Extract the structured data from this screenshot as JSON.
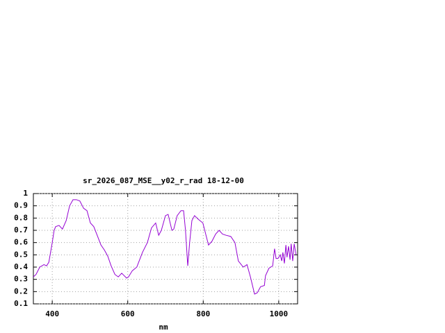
{
  "chart_data": {
    "type": "line",
    "title": "sr_2026_087_MSE__y02_r_rad 18-12-00",
    "x_label": "nm",
    "x": [
      350,
      357,
      367,
      378,
      385,
      391,
      400,
      405,
      409,
      418,
      427,
      437,
      446,
      455,
      464,
      473,
      483,
      492,
      501,
      510,
      519,
      529,
      538,
      547,
      556,
      566,
      575,
      584,
      597,
      602,
      612,
      624,
      639,
      652,
      663,
      674,
      682,
      689,
      700,
      707,
      717,
      722,
      731,
      741,
      748,
      753,
      759,
      764,
      770,
      777,
      787,
      799,
      814,
      823,
      833,
      842,
      851,
      860,
      873,
      884,
      893,
      906,
      916,
      925,
      936,
      943,
      952,
      962,
      965,
      974,
      984,
      989,
      993,
      998,
      1004,
      1008,
      1011,
      1015,
      1019,
      1022,
      1026,
      1030,
      1033,
      1037,
      1041,
      1046
    ],
    "series": [
      {
        "color": "#9400d3",
        "values": [
          0.32,
          0.34,
          0.4,
          0.42,
          0.41,
          0.44,
          0.6,
          0.7,
          0.73,
          0.74,
          0.71,
          0.78,
          0.9,
          0.95,
          0.95,
          0.94,
          0.88,
          0.86,
          0.76,
          0.73,
          0.66,
          0.58,
          0.54,
          0.49,
          0.41,
          0.34,
          0.32,
          0.35,
          0.31,
          0.32,
          0.37,
          0.4,
          0.52,
          0.6,
          0.72,
          0.76,
          0.66,
          0.7,
          0.82,
          0.83,
          0.7,
          0.71,
          0.82,
          0.86,
          0.86,
          0.7,
          0.41,
          0.6,
          0.78,
          0.82,
          0.79,
          0.76,
          0.58,
          0.61,
          0.67,
          0.7,
          0.67,
          0.66,
          0.65,
          0.6,
          0.45,
          0.4,
          0.42,
          0.32,
          0.18,
          0.19,
          0.24,
          0.25,
          0.33,
          0.39,
          0.41,
          0.55,
          0.47,
          0.47,
          0.5,
          0.45,
          0.52,
          0.43,
          0.58,
          0.48,
          0.57,
          0.46,
          0.59,
          0.45,
          0.59,
          0.5
        ]
      }
    ],
    "xlim": [
      350,
      1050
    ],
    "ylim": [
      0.1,
      1
    ],
    "xticks": [
      400,
      600,
      800,
      1000
    ],
    "yticks": [
      0.1,
      0.2,
      0.3,
      0.4,
      0.5,
      0.6,
      0.7,
      0.8,
      0.9,
      1
    ],
    "grid": true
  }
}
